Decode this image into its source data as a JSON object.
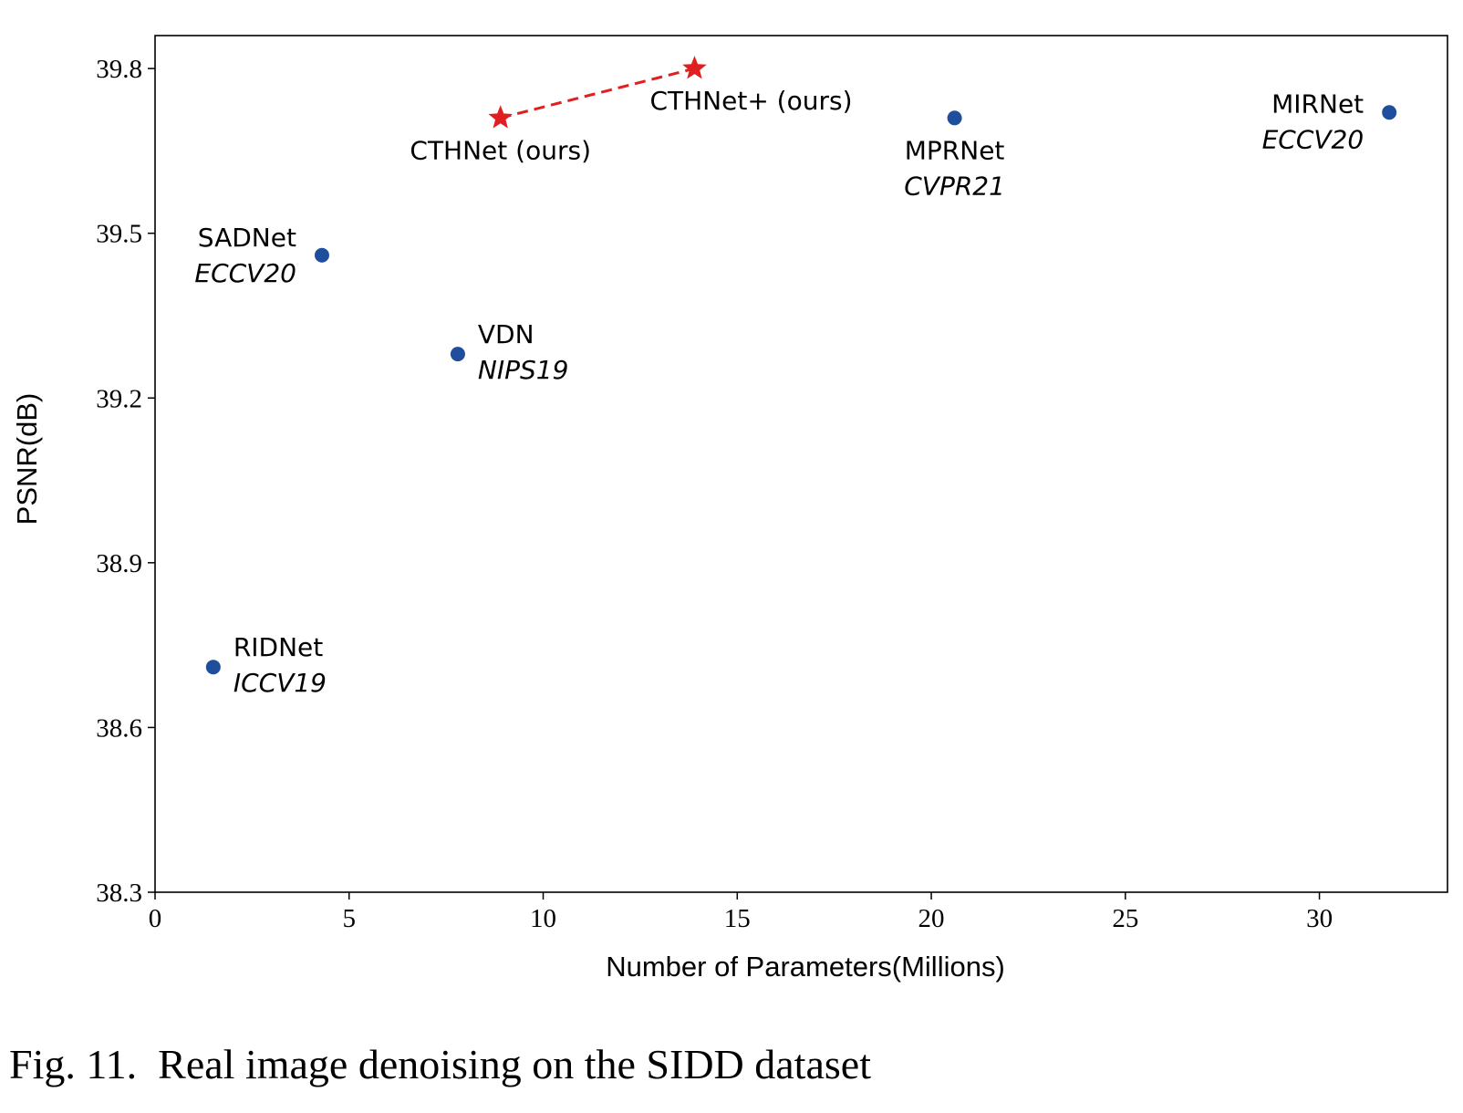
{
  "chart_data": {
    "type": "scatter",
    "xlabel": "Number of Parameters(Millions)",
    "ylabel": "PSNR(dB)",
    "xlim": [
      0,
      33.3
    ],
    "ylim": [
      38.3,
      39.86
    ],
    "xticks": [
      0,
      5,
      10,
      15,
      20,
      25,
      30
    ],
    "yticks": [
      38.3,
      38.6,
      38.9,
      39.2,
      39.5,
      39.8
    ],
    "grid": false,
    "points": [
      {
        "name": "RIDNet",
        "venue": "ICCV19",
        "x": 1.5,
        "y": 38.71,
        "marker": "circle",
        "color": "#1f4e9c",
        "label_side": "right-above"
      },
      {
        "name": "SADNet",
        "venue": "ECCV20",
        "x": 4.3,
        "y": 39.46,
        "marker": "circle",
        "color": "#1f4e9c",
        "label_side": "left-above"
      },
      {
        "name": "VDN",
        "venue": "NIPS19",
        "x": 7.8,
        "y": 39.28,
        "marker": "circle",
        "color": "#1f4e9c",
        "label_side": "right-above"
      },
      {
        "name": "CTHNet (ours)",
        "venue": "",
        "x": 8.9,
        "y": 39.71,
        "marker": "star",
        "color": "#e02020",
        "label_side": "below"
      },
      {
        "name": "CTHNet+ (ours)",
        "venue": "",
        "x": 13.9,
        "y": 39.8,
        "marker": "star",
        "color": "#e02020",
        "label_side": "below-right"
      },
      {
        "name": "MPRNet",
        "venue": "CVPR21",
        "x": 20.6,
        "y": 39.71,
        "marker": "circle",
        "color": "#1f4e9c",
        "label_side": "below"
      },
      {
        "name": "MIRNet",
        "venue": "ECCV20",
        "x": 31.8,
        "y": 39.72,
        "marker": "circle",
        "color": "#1f4e9c",
        "label_side": "left"
      }
    ],
    "connector": {
      "from": "CTHNet (ours)",
      "to": "CTHNet+ (ours)",
      "style": "dashed",
      "color": "#e02020"
    }
  },
  "caption": "Fig. 11.  Real image denoising on the SIDD dataset"
}
